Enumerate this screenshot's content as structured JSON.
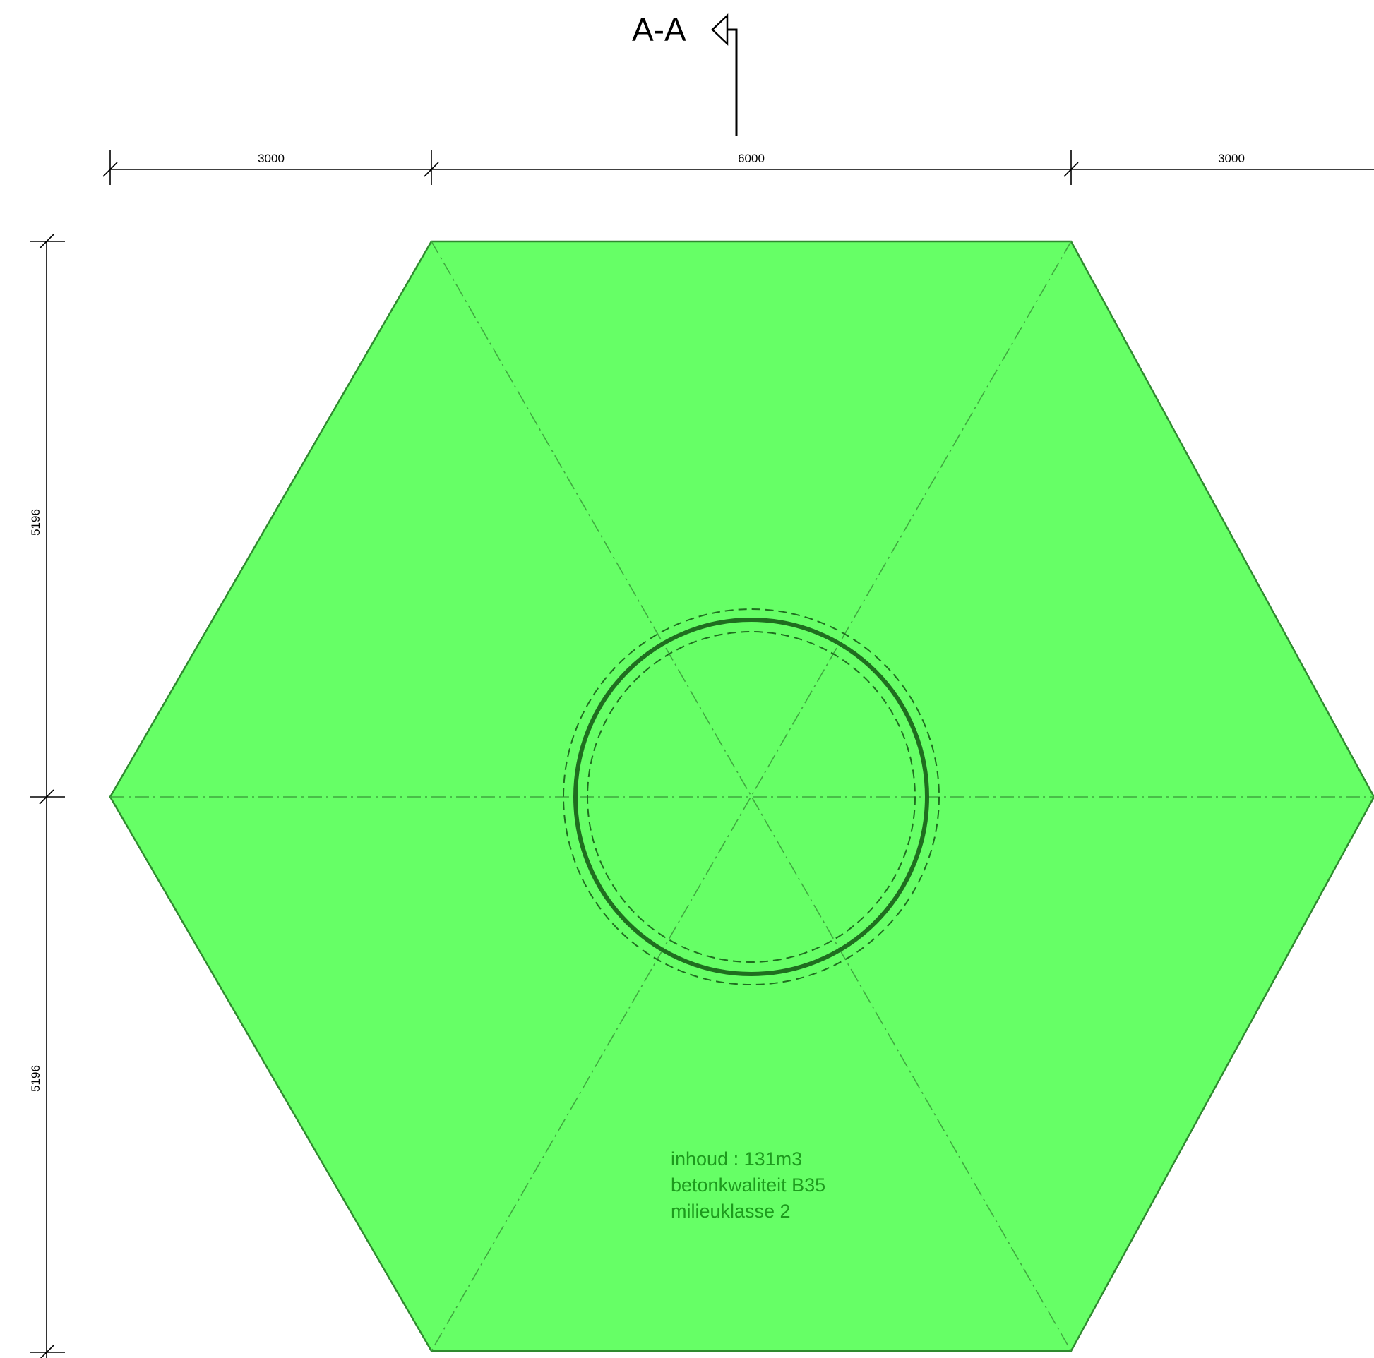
{
  "section_marker": {
    "label": "A-A"
  },
  "dimensions": {
    "horizontal": [
      "3000",
      "6000",
      "3000"
    ],
    "vertical": [
      "5196",
      "5196"
    ]
  },
  "annotation": {
    "lines": [
      "inhoud : 131m3",
      "betonkwaliteit B35",
      "milieuklasse 2"
    ]
  },
  "colors": {
    "hexagon_fill": "#66ff66",
    "hexagon_stroke": "#2f8a2f",
    "axis_line": "#3fa83f",
    "ring_line": "#1f6e1f",
    "note_text": "#1d9a1d",
    "dimension_line": "#000000"
  }
}
